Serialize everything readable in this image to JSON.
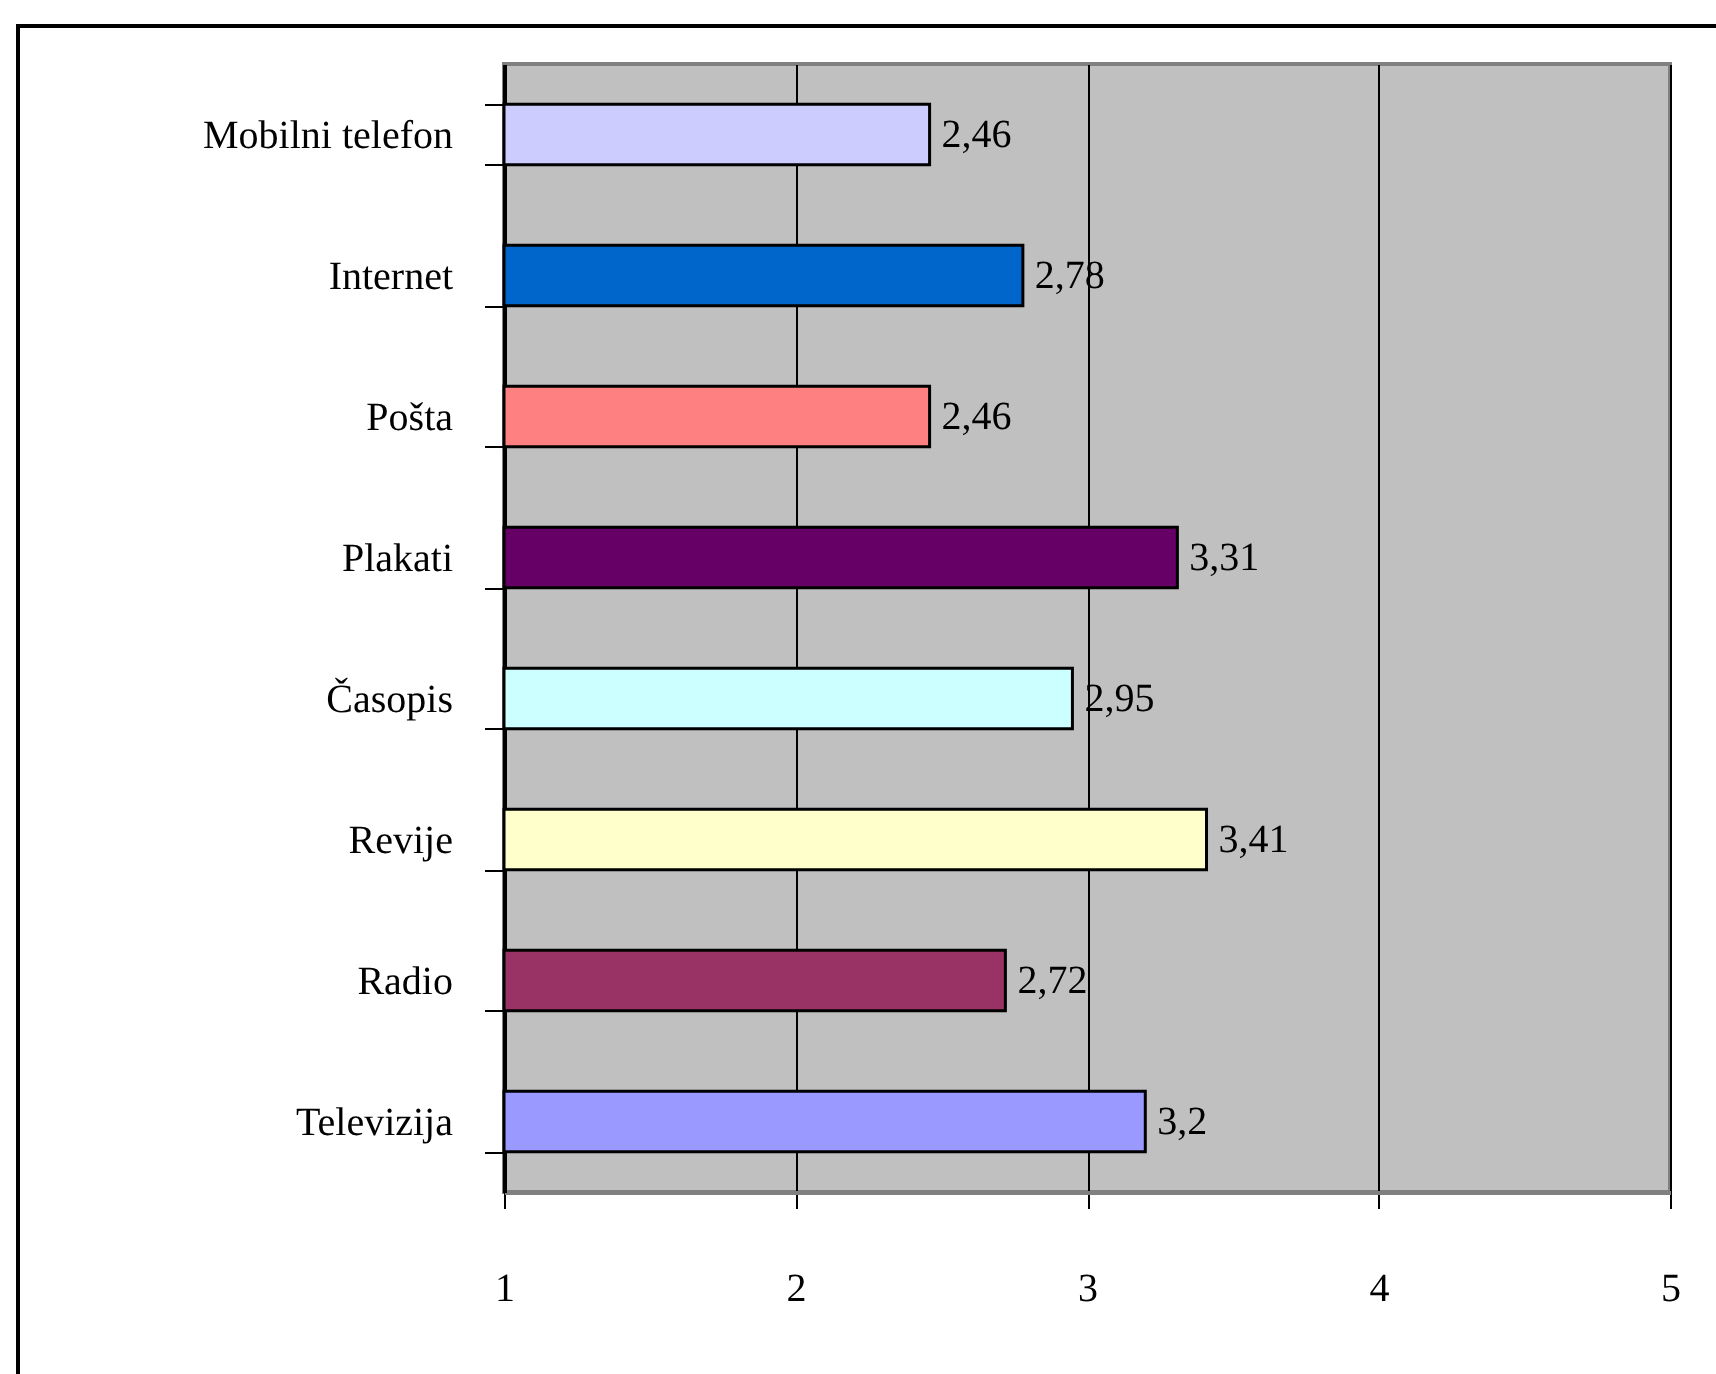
{
  "chart_data": {
    "type": "bar",
    "orientation": "horizontal",
    "categories": [
      "Mobilni telefon",
      "Internet",
      "Pošta",
      "Plakati",
      "Časopis",
      "Revije",
      "Radio",
      "Televizija"
    ],
    "values": [
      2.46,
      2.78,
      2.46,
      3.31,
      2.95,
      3.41,
      2.72,
      3.2
    ],
    "value_labels": [
      "2,46",
      "2,78",
      "2,46",
      "3,31",
      "2,95",
      "3,41",
      "2,72",
      "3,2"
    ],
    "colors": [
      "#ccccff",
      "#0066cc",
      "#ff8080",
      "#660066",
      "#ccffff",
      "#ffffcc",
      "#993366",
      "#9999ff"
    ],
    "xlim": [
      1,
      5
    ],
    "xticks": [
      1,
      2,
      3,
      4,
      5
    ],
    "grid": "x",
    "legend": false
  }
}
